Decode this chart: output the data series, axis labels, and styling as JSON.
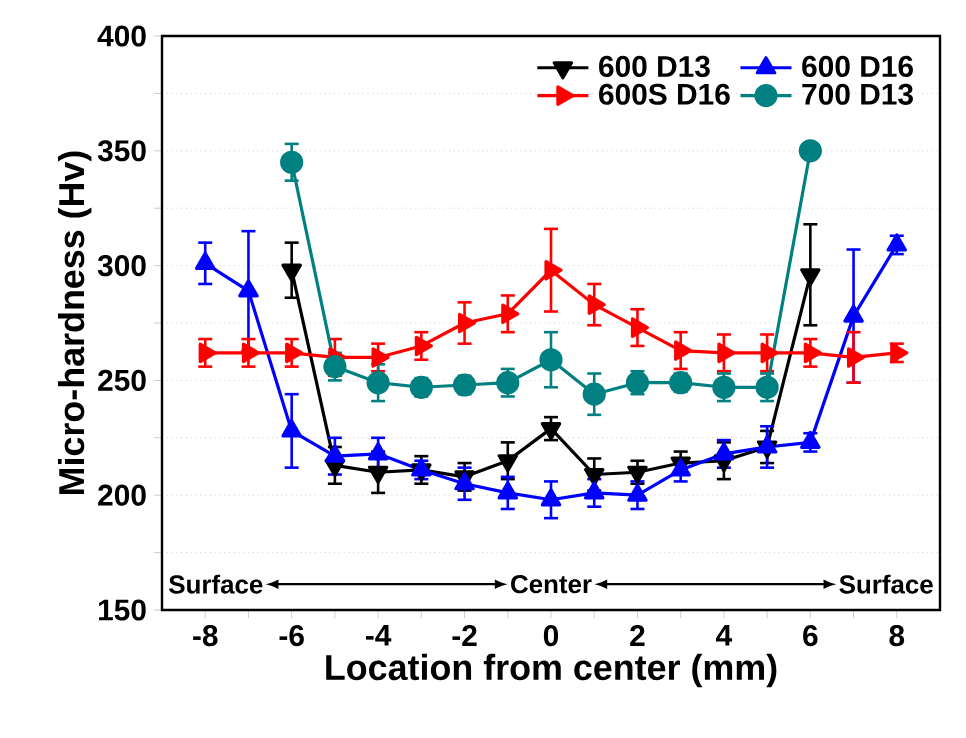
{
  "chart_data": {
    "type": "line",
    "xlabel": "Location from center (mm)",
    "ylabel": "Micro-hardness (Hv)",
    "xlim": [
      -9,
      9
    ],
    "ylim": [
      150,
      400
    ],
    "xticks": [
      -8,
      {
        "value": -7,
        "label": null
      },
      -6,
      {
        "value": -5,
        "label": null
      },
      -4,
      {
        "value": -3,
        "label": null
      },
      -2,
      {
        "value": -1,
        "label": null
      },
      0,
      {
        "value": 1,
        "label": null
      },
      2,
      {
        "value": 3,
        "label": null
      },
      4,
      {
        "value": 5,
        "label": null
      },
      6,
      {
        "value": 7,
        "label": null
      },
      8
    ],
    "yticks": [
      150,
      {
        "value": 175,
        "label": null
      },
      200,
      {
        "value": 225,
        "label": null
      },
      250,
      {
        "value": 275,
        "label": null
      },
      300,
      {
        "value": 325,
        "label": null
      },
      350,
      {
        "value": 375,
        "label": null
      },
      400
    ],
    "grid": "y",
    "legend": "top right",
    "line_style": "solid",
    "annotations": [
      "Surface",
      "Center",
      "Surface"
    ],
    "series": [
      {
        "name": "600 D13",
        "color": "#000000",
        "marker": "triangle-down",
        "x": [
          -6,
          -5,
          -4,
          -3,
          -2,
          -1,
          0,
          1,
          2,
          3,
          4,
          5,
          6
        ],
        "values": [
          298,
          213,
          210,
          211,
          208,
          215,
          229,
          209,
          210,
          214,
          215,
          221,
          296
        ],
        "errors": [
          12,
          8,
          9,
          6,
          6,
          8,
          5,
          7,
          5,
          5,
          8,
          7,
          22
        ]
      },
      {
        "name": "600 D16",
        "color": "#0000ff",
        "marker": "triangle",
        "x": [
          -8,
          -7,
          -6,
          -5,
          -4,
          -3,
          -2,
          -1,
          0,
          1,
          2,
          3,
          4,
          5,
          6,
          7,
          8
        ],
        "values": [
          301,
          289,
          228,
          217,
          218,
          211,
          205,
          201,
          198,
          201,
          200,
          211,
          218,
          221,
          223,
          278,
          309
        ],
        "errors": [
          9,
          26,
          16,
          8,
          7,
          4,
          7,
          7,
          8,
          6,
          6,
          5,
          6,
          9,
          4,
          29,
          4
        ]
      },
      {
        "name": "600S D16",
        "color": "#ff0000",
        "marker": "triangle-right",
        "x": [
          -8,
          -7,
          -6,
          -5,
          -4,
          -3,
          -2,
          -1,
          0,
          1,
          2,
          3,
          4,
          5,
          6,
          7,
          8
        ],
        "values": [
          262,
          262,
          262,
          260,
          260,
          265,
          275,
          279,
          298,
          283,
          273,
          263,
          262,
          262,
          262,
          260,
          262
        ],
        "errors": [
          6,
          6,
          6,
          8,
          6,
          6,
          9,
          8,
          18,
          9,
          8,
          8,
          8,
          8,
          6,
          11,
          4
        ]
      },
      {
        "name": "700 D13",
        "color": "#008080",
        "marker": "circle",
        "x": [
          -6,
          -5,
          -4,
          -3,
          -2,
          -1,
          0,
          1,
          2,
          3,
          4,
          5,
          6
        ],
        "values": [
          345,
          256,
          249,
          247,
          248,
          249,
          259,
          244,
          249,
          249,
          247,
          247,
          350
        ],
        "errors": [
          8,
          6,
          8,
          4,
          4,
          6,
          12,
          9,
          5,
          4,
          6,
          6,
          3
        ]
      }
    ]
  }
}
